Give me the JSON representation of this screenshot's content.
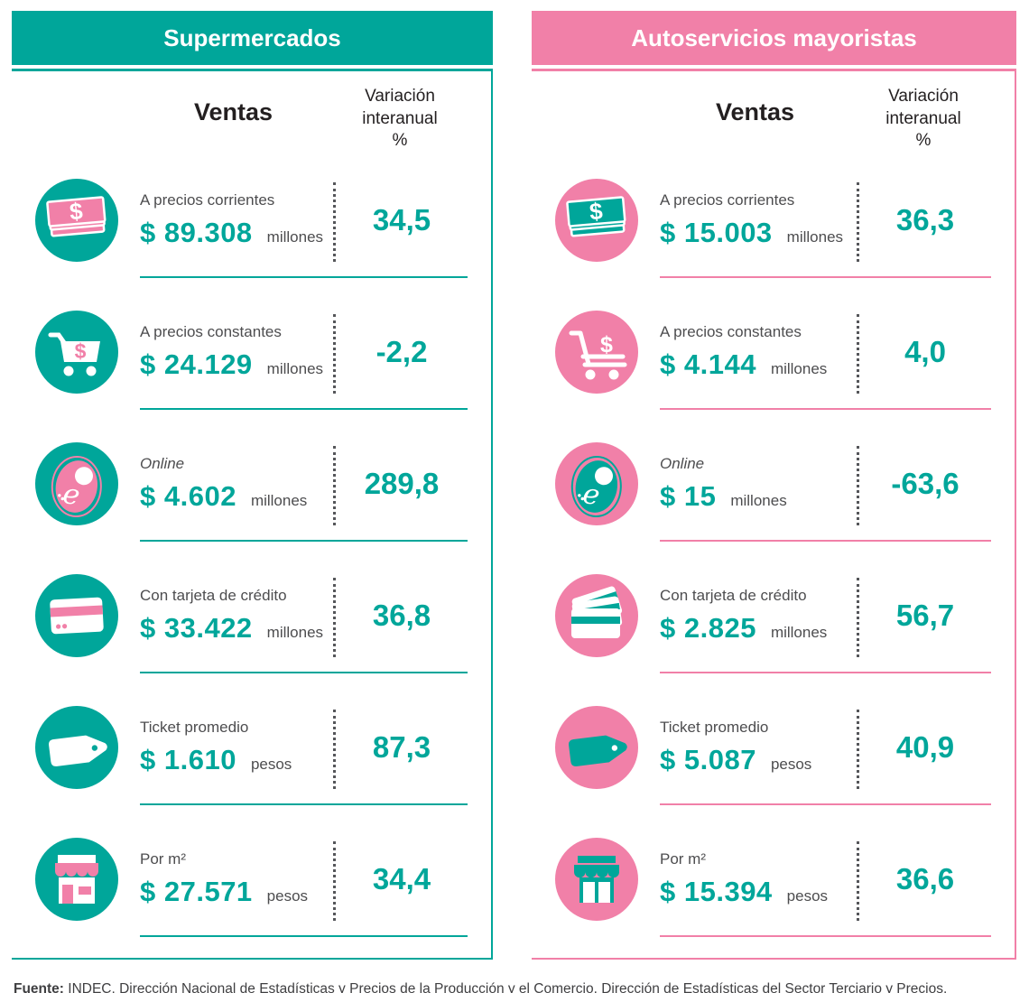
{
  "colors": {
    "teal": "#00a69a",
    "pink": "#f180a8",
    "value_text": "#00a69a",
    "label_text": "#4d4d4f",
    "heading_text": "#231f20"
  },
  "columns": {
    "ventas": "Ventas",
    "variacion": "Variación\ninteranual\n%"
  },
  "panels": [
    {
      "title": "Supermercados",
      "theme": "teal",
      "rows": [
        {
          "icon": "money-bills-icon",
          "label": "A precios corrientes",
          "italic": false,
          "value": "$ 89.308",
          "unit": "millones",
          "variation": "34,5"
        },
        {
          "icon": "shopping-cart-icon",
          "label": "A precios constantes",
          "italic": false,
          "value": "$ 24.129",
          "unit": "millones",
          "variation": "-2,2"
        },
        {
          "icon": "ecommerce-tag-icon",
          "label": "Online",
          "italic": true,
          "value": "$ 4.602",
          "unit": "millones",
          "variation": "289,8"
        },
        {
          "icon": "credit-card-icon",
          "label": "Con tarjeta de crédito",
          "italic": false,
          "value": "$ 33.422",
          "unit": "millones",
          "variation": "36,8"
        },
        {
          "icon": "price-tag-icon",
          "label": "Ticket promedio",
          "italic": false,
          "value": "$ 1.610",
          "unit": "pesos",
          "variation": "87,3"
        },
        {
          "icon": "storefront-icon",
          "label": "Por m²",
          "italic": false,
          "value": "$ 27.571",
          "unit": "pesos",
          "variation": "34,4"
        }
      ]
    },
    {
      "title": "Autoservicios mayoristas",
      "theme": "pink",
      "rows": [
        {
          "icon": "money-bills-icon",
          "label": "A precios corrientes",
          "italic": false,
          "value": "$ 15.003",
          "unit": "millones",
          "variation": "36,3"
        },
        {
          "icon": "shopping-cart-icon",
          "label": "A precios constantes",
          "italic": false,
          "value": "$ 4.144",
          "unit": "millones",
          "variation": "4,0"
        },
        {
          "icon": "ecommerce-tag-icon",
          "label": "Online",
          "italic": true,
          "value": "$ 15",
          "unit": "millones",
          "variation": "-63,6"
        },
        {
          "icon": "credit-card-icon",
          "label": "Con tarjeta de crédito",
          "italic": false,
          "value": "$ 2.825",
          "unit": "millones",
          "variation": "56,7"
        },
        {
          "icon": "price-tag-icon",
          "label": "Ticket promedio",
          "italic": false,
          "value": "$ 5.087",
          "unit": "pesos",
          "variation": "40,9"
        },
        {
          "icon": "storefront-icon",
          "label": "Por m²",
          "italic": false,
          "value": "$ 15.394",
          "unit": "pesos",
          "variation": "36,6"
        }
      ]
    }
  ],
  "footer": {
    "label": "Fuente:",
    "text": " INDEC, Dirección Nacional de Estadísticas y Precios de la Producción y el Comercio. Dirección de Estadísticas del Sector Terciario y Precios."
  },
  "chart_data": [
    {
      "type": "table",
      "title": "Supermercados",
      "columns": [
        "Ventas",
        "Variación interanual %"
      ],
      "rows": [
        {
          "categoria": "A precios corrientes",
          "ventas": "$ 89.308 millones",
          "variacion_interanual_pct": 34.5
        },
        {
          "categoria": "A precios constantes",
          "ventas": "$ 24.129 millones",
          "variacion_interanual_pct": -2.2
        },
        {
          "categoria": "Online",
          "ventas": "$ 4.602 millones",
          "variacion_interanual_pct": 289.8
        },
        {
          "categoria": "Con tarjeta de crédito",
          "ventas": "$ 33.422 millones",
          "variacion_interanual_pct": 36.8
        },
        {
          "categoria": "Ticket promedio",
          "ventas": "$ 1.610 pesos",
          "variacion_interanual_pct": 87.3
        },
        {
          "categoria": "Por m²",
          "ventas": "$ 27.571 pesos",
          "variacion_interanual_pct": 34.4
        }
      ]
    },
    {
      "type": "table",
      "title": "Autoservicios mayoristas",
      "columns": [
        "Ventas",
        "Variación interanual %"
      ],
      "rows": [
        {
          "categoria": "A precios corrientes",
          "ventas": "$ 15.003 millones",
          "variacion_interanual_pct": 36.3
        },
        {
          "categoria": "A precios constantes",
          "ventas": "$ 4.144 millones",
          "variacion_interanual_pct": 4.0
        },
        {
          "categoria": "Online",
          "ventas": "$ 15 millones",
          "variacion_interanual_pct": -63.6
        },
        {
          "categoria": "Con tarjeta de crédito",
          "ventas": "$ 2.825 millones",
          "variacion_interanual_pct": 56.7
        },
        {
          "categoria": "Ticket promedio",
          "ventas": "$ 5.087 pesos",
          "variacion_interanual_pct": 40.9
        },
        {
          "categoria": "Por m²",
          "ventas": "$ 15.394 pesos",
          "variacion_interanual_pct": 36.6
        }
      ]
    }
  ]
}
